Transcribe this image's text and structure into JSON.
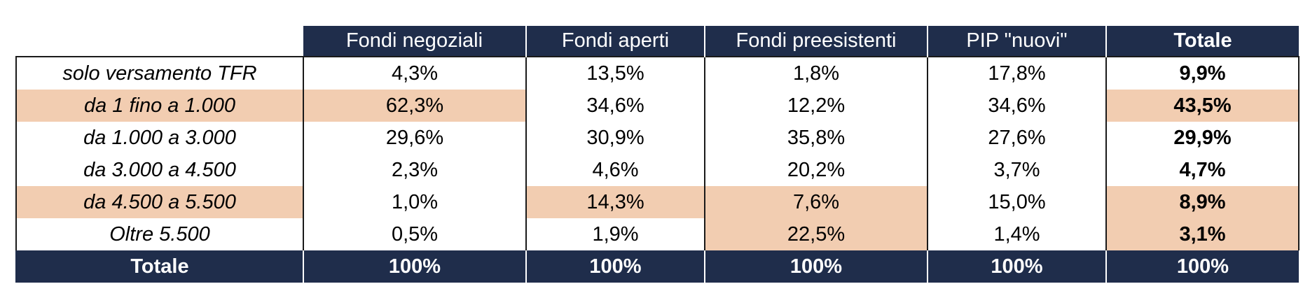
{
  "chart_data": {
    "type": "table",
    "columns": [
      "Fondi negoziali",
      "Fondi aperti",
      "Fondi preesistenti",
      "PIP \"nuovi\"",
      "Totale"
    ],
    "rows": [
      {
        "label": "solo versamento TFR",
        "values": [
          "4,3%",
          "13,5%",
          "1,8%",
          "17,8%",
          "9,9%"
        ],
        "highlight": [
          false,
          false,
          false,
          false,
          false,
          false
        ]
      },
      {
        "label": "da 1 fino a 1.000",
        "values": [
          "62,3%",
          "34,6%",
          "12,2%",
          "34,6%",
          "43,5%"
        ],
        "highlight": [
          true,
          true,
          false,
          false,
          false,
          true
        ]
      },
      {
        "label": "da 1.000 a 3.000",
        "values": [
          "29,6%",
          "30,9%",
          "35,8%",
          "27,6%",
          "29,9%"
        ],
        "highlight": [
          false,
          false,
          false,
          false,
          false,
          false
        ]
      },
      {
        "label": "da 3.000 a 4.500",
        "values": [
          "2,3%",
          "4,6%",
          "20,2%",
          "3,7%",
          "4,7%"
        ],
        "highlight": [
          false,
          false,
          false,
          false,
          false,
          false
        ]
      },
      {
        "label": "da 4.500 a 5.500",
        "values": [
          "1,0%",
          "14,3%",
          "7,6%",
          "15,0%",
          "8,9%"
        ],
        "highlight": [
          true,
          false,
          true,
          true,
          false,
          true
        ]
      },
      {
        "label": "Oltre 5.500",
        "values": [
          "0,5%",
          "1,9%",
          "22,5%",
          "1,4%",
          "3,1%"
        ],
        "highlight": [
          false,
          false,
          false,
          true,
          false,
          true
        ]
      }
    ],
    "footer": {
      "label": "Totale",
      "values": [
        "100%",
        "100%",
        "100%",
        "100%",
        "100%"
      ]
    },
    "colors": {
      "header_bg": "#1f2d4b",
      "header_text": "#ffffff",
      "highlight": "#f2cdb1"
    }
  }
}
